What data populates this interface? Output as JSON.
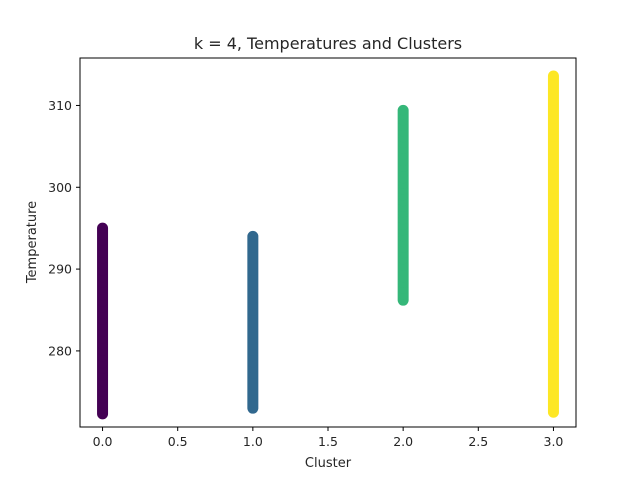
{
  "chart_data": {
    "type": "scatter",
    "title": "k = 4, Temperatures and Clusters",
    "xlabel": "Cluster",
    "ylabel": "Temperature",
    "xlim": [
      -0.15,
      3.15
    ],
    "ylim": [
      270.7,
      315.8
    ],
    "xticks": [
      0.0,
      0.5,
      1.0,
      1.5,
      2.0,
      2.5,
      3.0
    ],
    "xtick_labels": [
      "0.0",
      "0.5",
      "1.0",
      "1.5",
      "2.0",
      "2.5",
      "3.0"
    ],
    "yticks": [
      280,
      290,
      300,
      310
    ],
    "ytick_labels": [
      "280",
      "290",
      "300",
      "310"
    ],
    "grid": false,
    "legend": "none",
    "series": [
      {
        "x": 0,
        "y_min": 272.3,
        "y_max": 295.0,
        "color": "#440154",
        "y": [
          272.3,
          272.9,
          273.6,
          274.2,
          275.0,
          275.6,
          276.3,
          277.0,
          277.8,
          278.5,
          279.3,
          280.0,
          280.8,
          281.5,
          282.3,
          283.0,
          283.8,
          284.5,
          285.3,
          286.0,
          286.8,
          287.5,
          288.3,
          289.0,
          289.8,
          290.5,
          291.3,
          292.0,
          292.8,
          293.5,
          294.2,
          295.0
        ]
      },
      {
        "x": 1,
        "y_min": 273.0,
        "y_max": 294.0,
        "color": "#31688e",
        "y": [
          273.0,
          273.7,
          274.4,
          275.1,
          275.8,
          276.5,
          277.2,
          277.9,
          278.6,
          279.3,
          280.0,
          280.7,
          281.4,
          282.1,
          282.8,
          283.5,
          284.2,
          284.9,
          285.6,
          286.3,
          287.0,
          287.7,
          288.4,
          289.1,
          289.8,
          290.5,
          291.2,
          291.9,
          292.6,
          293.3,
          294.0
        ]
      },
      {
        "x": 2,
        "y_min": 286.2,
        "y_max": 309.4,
        "color": "#35b779",
        "y": [
          286.2,
          286.9,
          287.6,
          288.3,
          289.0,
          289.7,
          290.4,
          291.2,
          291.9,
          292.6,
          293.3,
          294.0,
          294.7,
          295.4,
          296.1,
          296.9,
          297.6,
          298.3,
          299.0,
          299.7,
          300.4,
          301.1,
          301.8,
          302.5,
          303.2,
          304.0,
          304.7,
          305.4,
          306.1,
          306.8,
          307.5,
          308.2,
          308.9,
          309.4
        ]
      },
      {
        "x": 3,
        "y_min": 272.5,
        "y_max": 313.6,
        "color": "#fde725",
        "y": [
          272.5,
          273.6,
          274.3,
          275.0,
          275.8,
          276.6,
          277.4,
          278.2,
          279.0,
          279.8,
          280.6,
          281.4,
          282.2,
          283.0,
          283.8,
          284.6,
          285.4,
          286.2,
          287.0,
          287.8,
          288.6,
          289.4,
          290.2,
          291.0,
          291.8,
          292.6,
          293.4,
          294.2,
          295.0,
          295.8,
          296.6,
          297.4,
          298.2,
          299.0,
          299.8,
          300.6,
          301.4,
          302.2,
          303.0,
          303.8,
          304.6,
          305.4,
          306.2,
          307.0,
          307.6,
          308.4,
          309.2,
          309.8,
          310.6,
          311.4,
          312.0,
          312.8,
          313.6
        ]
      }
    ]
  }
}
